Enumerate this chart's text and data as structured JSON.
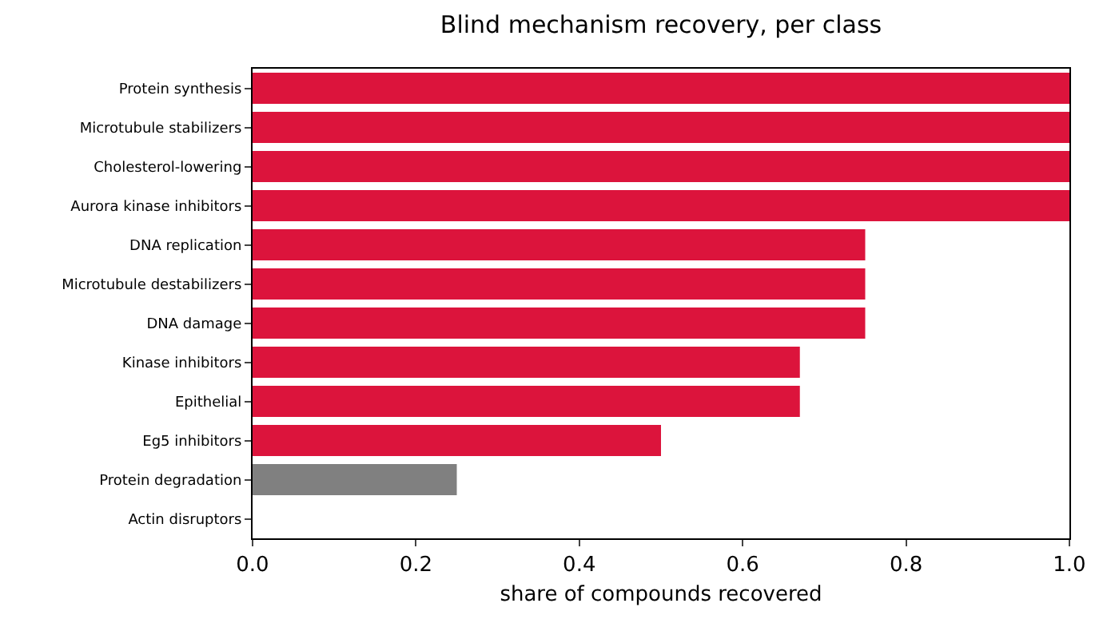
{
  "chart_data": {
    "type": "bar",
    "orientation": "horizontal",
    "title": "Blind mechanism recovery, per class",
    "xlabel": "share of compounds recovered",
    "categories": [
      "Protein synthesis",
      "Microtubule stabilizers",
      "Cholesterol-lowering",
      "Aurora kinase inhibitors",
      "DNA replication",
      "Microtubule destabilizers",
      "DNA damage",
      "Kinase inhibitors",
      "Epithelial",
      "Eg5 inhibitors",
      "Protein degradation",
      "Actin disruptors"
    ],
    "values": [
      1,
      1,
      1,
      1,
      0.75,
      0.75,
      0.75,
      0.67,
      0.67,
      0.5,
      0.25,
      0
    ],
    "colors": [
      "#dc143c",
      "#dc143c",
      "#dc143c",
      "#dc143c",
      "#dc143c",
      "#dc143c",
      "#dc143c",
      "#dc143c",
      "#dc143c",
      "#dc143c",
      "#808080",
      "#dc143c"
    ],
    "xlim": [
      0,
      1
    ],
    "xticks": [
      {
        "value": 0,
        "label": "0.0"
      },
      {
        "value": 0.2,
        "label": "0.2"
      },
      {
        "value": 0.4,
        "label": "0.4"
      },
      {
        "value": 0.6,
        "label": "0.6"
      },
      {
        "value": 0.8,
        "label": "0.8"
      },
      {
        "value": 1,
        "label": "1.0"
      }
    ],
    "grid": false
  }
}
